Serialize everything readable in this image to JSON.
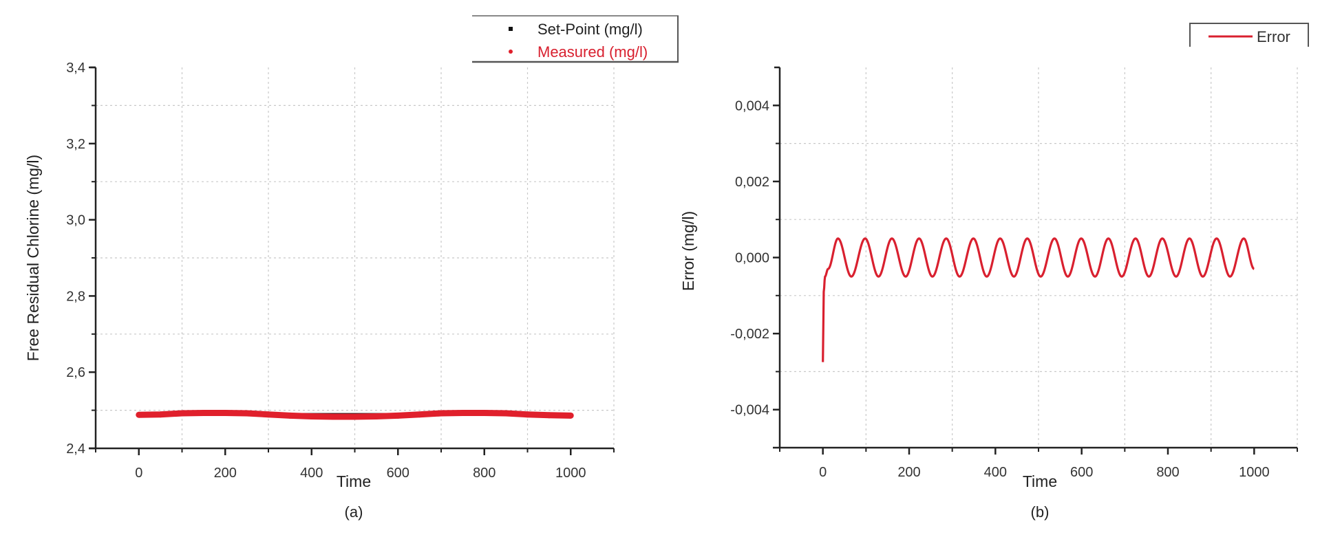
{
  "chart_data": [
    {
      "type": "line",
      "caption": "(a)",
      "xlabel": "Time",
      "ylabel": "Free Residual Chlorine (mg/l)",
      "xlim": [
        -100,
        1100
      ],
      "ylim": [
        2.4,
        3.4
      ],
      "xticks": [
        0,
        200,
        400,
        600,
        800,
        1000
      ],
      "xtick_labels": [
        "0",
        "200",
        "400",
        "600",
        "800",
        "1000"
      ],
      "yticks": [
        2.4,
        2.6,
        2.8,
        3.0,
        3.2,
        3.4
      ],
      "ytick_labels": [
        "2,4",
        "2,6",
        "2,8",
        "3,0",
        "3,2",
        "3,4"
      ],
      "grid": true,
      "legend_placement": "top-right",
      "series": [
        {
          "name": "Set-Point (mg/l)",
          "color": "#111111",
          "marker": "square",
          "x": [
            0,
            1000
          ],
          "y": [
            2.49,
            2.49
          ]
        },
        {
          "name": "Measured (mg/l)",
          "color": "#e0202c",
          "marker": "circle",
          "x": [
            0,
            50,
            100,
            150,
            200,
            250,
            300,
            350,
            400,
            450,
            500,
            550,
            600,
            650,
            700,
            750,
            800,
            850,
            900,
            950,
            1000
          ],
          "y": [
            2.488,
            2.489,
            2.492,
            2.493,
            2.493,
            2.492,
            2.489,
            2.486,
            2.484,
            2.483,
            2.483,
            2.484,
            2.486,
            2.489,
            2.492,
            2.493,
            2.493,
            2.492,
            2.489,
            2.487,
            2.486
          ]
        }
      ]
    },
    {
      "type": "line",
      "caption": "(b)",
      "xlabel": "Time",
      "ylabel": "Error (mg/l)",
      "xlim": [
        -100,
        1100
      ],
      "ylim": [
        -0.005,
        0.005
      ],
      "xticks": [
        0,
        200,
        400,
        600,
        800,
        1000
      ],
      "xtick_labels": [
        "0",
        "200",
        "400",
        "600",
        "800",
        "1000"
      ],
      "yticks": [
        -0.004,
        -0.002,
        0.0,
        0.002,
        0.004
      ],
      "ytick_labels": [
        "-0,004",
        "-0,002",
        "0,000",
        "0,002",
        "0,004"
      ],
      "grid": true,
      "legend_placement": "top-right",
      "series": [
        {
          "name": "Error",
          "color": "#d9202f",
          "x": [
            0,
            2,
            5,
            12,
            35,
            66,
            98,
            129,
            160,
            192,
            223,
            254,
            286,
            317,
            349,
            380,
            411,
            443,
            474,
            505,
            537,
            568,
            599,
            631,
            662,
            693,
            725,
            756,
            787,
            819,
            850,
            881,
            913,
            944,
            976,
            1000
          ],
          "y": [
            -0.00275,
            -0.0009,
            -0.0005,
            -0.0003,
            0.0005,
            -0.0005,
            0.0005,
            -0.0005,
            0.0005,
            -0.0005,
            0.0005,
            -0.0005,
            0.0005,
            -0.0005,
            0.0005,
            -0.0005,
            0.0005,
            -0.0005,
            0.0005,
            -0.0005,
            0.0005,
            -0.0005,
            0.0005,
            -0.0005,
            0.0005,
            -0.0005,
            0.0005,
            -0.0005,
            0.0005,
            -0.0005,
            0.0005,
            -0.0005,
            0.0005,
            -0.0005,
            0.0005,
            -0.0003
          ]
        }
      ]
    }
  ]
}
